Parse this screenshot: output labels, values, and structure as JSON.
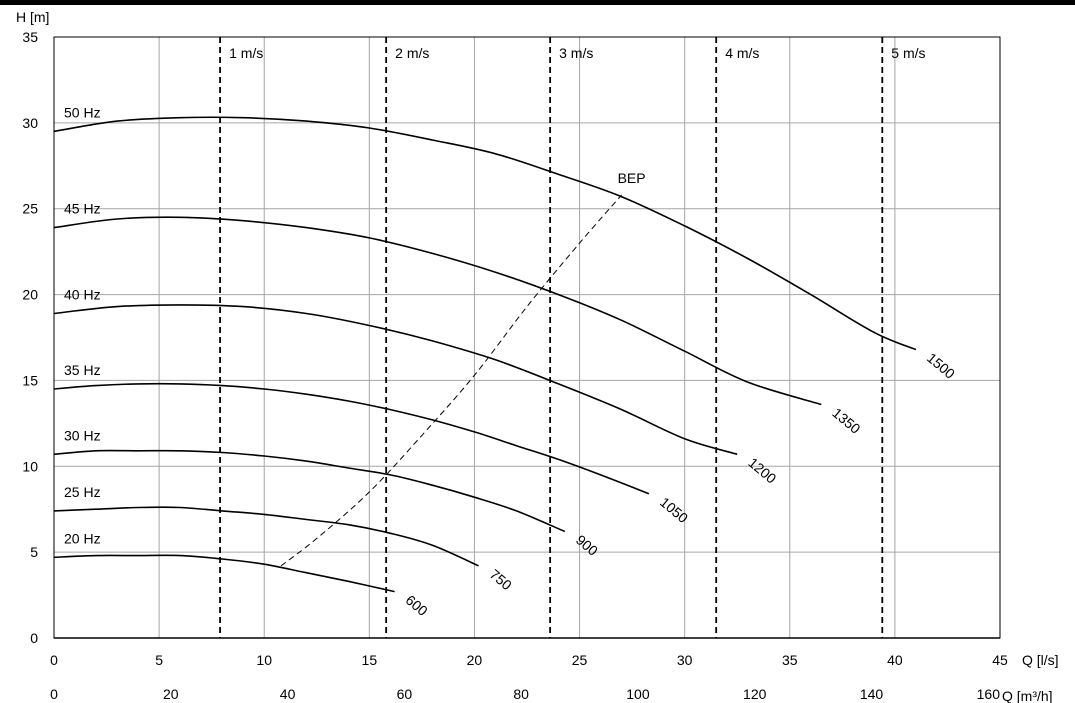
{
  "chart_data": {
    "type": "line",
    "title": "",
    "ylabel": "H [m]",
    "xlabel": "Q [l/s]",
    "x2label": "Q [m³/h]",
    "xlim": [
      0,
      45
    ],
    "ylim": [
      0,
      35
    ],
    "x_ticks": [
      "0",
      "5",
      "10",
      "15",
      "20",
      "25",
      "30",
      "35",
      "40",
      "45"
    ],
    "x2_ticks": [
      "0",
      "20",
      "40",
      "60",
      "80",
      "100",
      "120",
      "140",
      "160"
    ],
    "y_ticks": [
      "0",
      "5",
      "10",
      "15",
      "20",
      "25",
      "30",
      "35"
    ],
    "grid": true,
    "series": [
      {
        "name": "50 Hz",
        "end_label": "1500",
        "x": [
          0,
          3,
          6,
          9,
          12,
          15,
          18,
          21,
          24,
          27,
          30,
          33,
          36,
          39,
          41
        ],
        "y": [
          29.5,
          30.1,
          30.3,
          30.3,
          30.1,
          29.7,
          29.0,
          28.2,
          27.0,
          25.7,
          24.0,
          22.1,
          20.0,
          17.8,
          16.8
        ]
      },
      {
        "name": "45 Hz",
        "end_label": "1350",
        "x": [
          0,
          3,
          6,
          9,
          12,
          15,
          18,
          21,
          24,
          27,
          30,
          33,
          36.5
        ],
        "y": [
          23.9,
          24.4,
          24.5,
          24.3,
          23.9,
          23.3,
          22.4,
          21.3,
          20.0,
          18.5,
          16.7,
          14.9,
          13.6
        ]
      },
      {
        "name": "40 Hz",
        "end_label": "1200",
        "x": [
          0,
          3,
          6,
          9,
          12,
          15,
          18,
          21,
          24,
          27,
          30,
          32.5
        ],
        "y": [
          18.9,
          19.3,
          19.4,
          19.3,
          18.9,
          18.2,
          17.3,
          16.2,
          14.8,
          13.3,
          11.6,
          10.7
        ]
      },
      {
        "name": "35 Hz",
        "end_label": "1050",
        "x": [
          0,
          2,
          4,
          6,
          8,
          10,
          12,
          14,
          16,
          18,
          20,
          22,
          24,
          26,
          28.3
        ],
        "y": [
          14.5,
          14.7,
          14.8,
          14.8,
          14.7,
          14.5,
          14.2,
          13.8,
          13.3,
          12.7,
          12.0,
          11.2,
          10.4,
          9.5,
          8.4
        ]
      },
      {
        "name": "30 Hz",
        "end_label": "900",
        "x": [
          0,
          2,
          4,
          6,
          8,
          10,
          12,
          14,
          16,
          18,
          20,
          22,
          24.3
        ],
        "y": [
          10.7,
          10.9,
          10.9,
          10.9,
          10.8,
          10.6,
          10.3,
          9.9,
          9.5,
          8.9,
          8.2,
          7.4,
          6.2
        ]
      },
      {
        "name": "25 Hz",
        "end_label": "750",
        "x": [
          0,
          2,
          4,
          6,
          8,
          10,
          12,
          14,
          16,
          18,
          20.2
        ],
        "y": [
          7.4,
          7.5,
          7.6,
          7.6,
          7.4,
          7.2,
          6.9,
          6.6,
          6.1,
          5.4,
          4.2
        ]
      },
      {
        "name": "20 Hz",
        "end_label": "600",
        "x": [
          0,
          2,
          4,
          6,
          8,
          10,
          12,
          14,
          16.2
        ],
        "y": [
          4.7,
          4.8,
          4.8,
          4.8,
          4.6,
          4.3,
          3.8,
          3.3,
          2.7
        ]
      }
    ],
    "bep_curve": {
      "name": "BEP",
      "x": [
        10.8,
        12.5,
        15.0,
        17.5,
        20.0,
        22.5,
        25.0,
        27.0
      ],
      "y": [
        4.2,
        5.8,
        8.5,
        11.8,
        15.3,
        19.3,
        23.0,
        25.8
      ]
    },
    "velocity_lines": [
      {
        "label": "1 m/s",
        "x": 7.9
      },
      {
        "label": "2 m/s",
        "x": 15.8
      },
      {
        "label": "3 m/s",
        "x": 23.6
      },
      {
        "label": "4 m/s",
        "x": 31.5
      },
      {
        "label": "5 m/s",
        "x": 39.4
      }
    ]
  }
}
